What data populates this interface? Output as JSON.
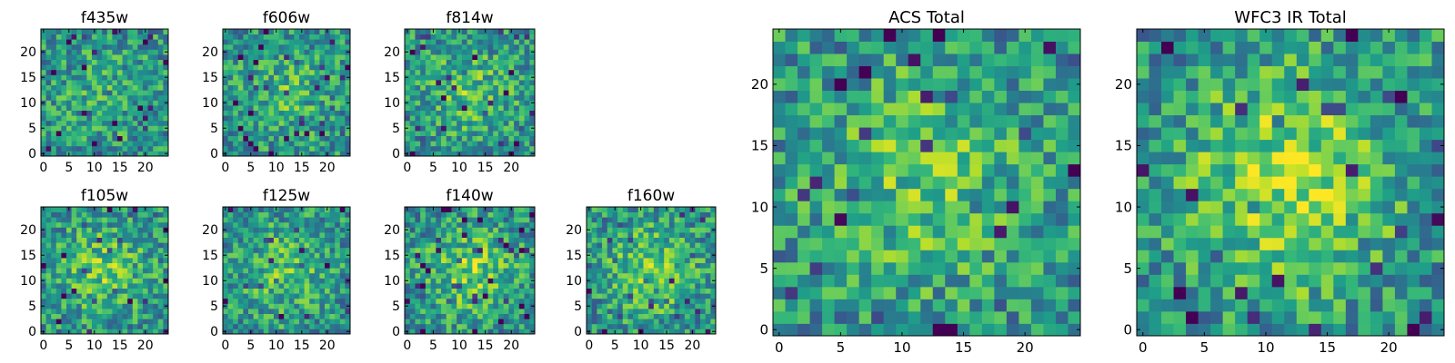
{
  "colormap": "viridis",
  "chart_data": [
    {
      "type": "heatmap",
      "title": "f435w",
      "xticks": [
        0,
        5,
        10,
        15,
        20
      ],
      "yticks": [
        0,
        5,
        10,
        15,
        20
      ],
      "shape": [
        25,
        25
      ],
      "xlim": [
        -0.5,
        24.5
      ],
      "ylim": [
        -0.5,
        24.5
      ],
      "seed": 11,
      "bright_center": 0.15
    },
    {
      "type": "heatmap",
      "title": "f606w",
      "xticks": [
        0,
        5,
        10,
        15,
        20
      ],
      "yticks": [
        0,
        5,
        10,
        15,
        20
      ],
      "shape": [
        25,
        25
      ],
      "xlim": [
        -0.5,
        24.5
      ],
      "ylim": [
        -0.5,
        24.5
      ],
      "seed": 23,
      "bright_center": 0.25
    },
    {
      "type": "heatmap",
      "title": "f814w",
      "xticks": [
        0,
        5,
        10,
        15,
        20
      ],
      "yticks": [
        0,
        5,
        10,
        15,
        20
      ],
      "shape": [
        25,
        25
      ],
      "xlim": [
        -0.5,
        24.5
      ],
      "ylim": [
        -0.5,
        24.5
      ],
      "seed": 37,
      "bright_center": 0.3
    },
    {
      "type": "heatmap",
      "title": "f105w",
      "xticks": [
        0,
        5,
        10,
        15,
        20
      ],
      "yticks": [
        0,
        5,
        10,
        15,
        20
      ],
      "shape": [
        25,
        25
      ],
      "xlim": [
        -0.5,
        24.5
      ],
      "ylim": [
        -0.5,
        24.5
      ],
      "seed": 41,
      "bright_center": 0.35
    },
    {
      "type": "heatmap",
      "title": "f125w",
      "xticks": [
        0,
        5,
        10,
        15,
        20
      ],
      "yticks": [
        0,
        5,
        10,
        15,
        20
      ],
      "shape": [
        25,
        25
      ],
      "xlim": [
        -0.5,
        24.5
      ],
      "ylim": [
        -0.5,
        24.5
      ],
      "seed": 53,
      "bright_center": 0.3
    },
    {
      "type": "heatmap",
      "title": "f140w",
      "xticks": [
        0,
        5,
        10,
        15,
        20
      ],
      "yticks": [
        0,
        5,
        10,
        15,
        20
      ],
      "shape": [
        25,
        25
      ],
      "xlim": [
        -0.5,
        24.5
      ],
      "ylim": [
        -0.5,
        24.5
      ],
      "seed": 67,
      "bright_center": 0.4
    },
    {
      "type": "heatmap",
      "title": "f160w",
      "xticks": [
        0,
        5,
        10,
        15,
        20
      ],
      "yticks": [
        0,
        5,
        10,
        15,
        20
      ],
      "shape": [
        25,
        25
      ],
      "xlim": [
        -0.5,
        24.5
      ],
      "ylim": [
        -0.5,
        24.5
      ],
      "seed": 79,
      "bright_center": 0.4
    },
    {
      "type": "heatmap",
      "title": "ACS Total",
      "xticks": [
        0,
        5,
        10,
        15,
        20
      ],
      "yticks": [
        0,
        5,
        10,
        15,
        20
      ],
      "shape": [
        25,
        25
      ],
      "xlim": [
        -0.5,
        24.5
      ],
      "ylim": [
        -0.5,
        24.5
      ],
      "seed": 97,
      "bright_center": 0.35
    },
    {
      "type": "heatmap",
      "title": "WFC3 IR Total",
      "xticks": [
        0,
        5,
        10,
        15,
        20
      ],
      "yticks": [
        0,
        5,
        10,
        15,
        20
      ],
      "shape": [
        25,
        25
      ],
      "xlim": [
        -0.5,
        24.5
      ],
      "ylim": [
        -0.5,
        24.5
      ],
      "seed": 131,
      "bright_center": 0.55
    }
  ]
}
